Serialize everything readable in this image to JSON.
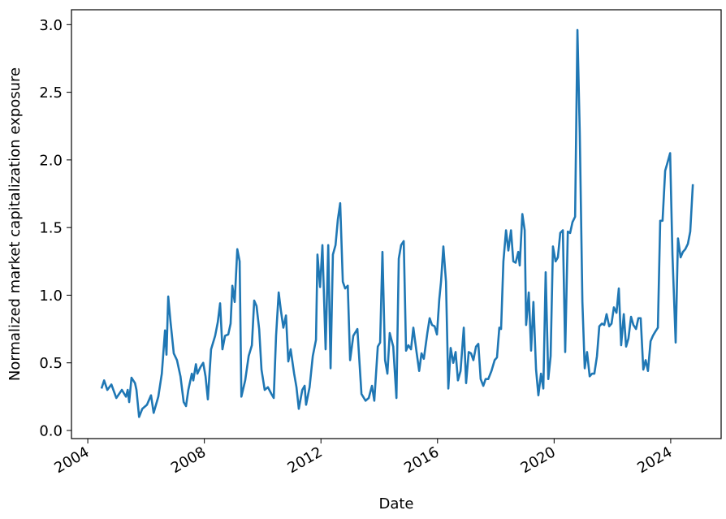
{
  "chart_data": {
    "type": "line",
    "x_label": "Date",
    "y_label": "Normalized market capitalization exposure",
    "color": "#1f77b4",
    "xlim": [
      2003.44,
      2025.73
    ],
    "ylim": [
      -0.06,
      3.11
    ],
    "xticks": [
      2004,
      2008,
      2012,
      2016,
      2020,
      2024
    ],
    "yticks": [
      {
        "value": 0,
        "label": "0.0"
      },
      0.5,
      {
        "value": 1,
        "label": "1.0"
      },
      1.5,
      {
        "value": 2,
        "label": "2.0"
      },
      2.5,
      {
        "value": 3,
        "label": "3.0"
      }
    ],
    "x": [
      2004.47,
      2004.56,
      2004.67,
      2004.81,
      2004.98,
      2005.17,
      2005.31,
      2005.37,
      2005.42,
      2005.5,
      2005.62,
      2005.67,
      2005.76,
      2005.87,
      2006.03,
      2006.17,
      2006.26,
      2006.42,
      2006.54,
      2006.65,
      2006.7,
      2006.76,
      2006.84,
      2006.95,
      2007.06,
      2007.18,
      2007.29,
      2007.37,
      2007.45,
      2007.57,
      2007.62,
      2007.71,
      2007.76,
      2007.87,
      2007.96,
      2008.04,
      2008.12,
      2008.23,
      2008.37,
      2008.46,
      2008.54,
      2008.62,
      2008.71,
      2008.82,
      2008.9,
      2008.96,
      2009.04,
      2009.13,
      2009.21,
      2009.27,
      2009.4,
      2009.52,
      2009.63,
      2009.71,
      2009.79,
      2009.88,
      2009.96,
      2010.07,
      2010.18,
      2010.3,
      2010.38,
      2010.46,
      2010.55,
      2010.63,
      2010.71,
      2010.8,
      2010.88,
      2010.96,
      2011.08,
      2011.16,
      2011.24,
      2011.36,
      2011.44,
      2011.49,
      2011.61,
      2011.72,
      2011.83,
      2011.88,
      2011.97,
      2012.05,
      2012.16,
      2012.25,
      2012.33,
      2012.41,
      2012.5,
      2012.58,
      2012.66,
      2012.75,
      2012.83,
      2012.92,
      2013.0,
      2013.11,
      2013.25,
      2013.39,
      2013.53,
      2013.64,
      2013.75,
      2013.83,
      2013.95,
      2014.03,
      2014.11,
      2014.2,
      2014.28,
      2014.36,
      2014.48,
      2014.59,
      2014.67,
      2014.75,
      2014.84,
      2014.92,
      2015.0,
      2015.09,
      2015.17,
      2015.28,
      2015.37,
      2015.45,
      2015.53,
      2015.65,
      2015.73,
      2015.81,
      2015.9,
      2015.98,
      2016.06,
      2016.12,
      2016.2,
      2016.29,
      2016.37,
      2016.45,
      2016.54,
      2016.62,
      2016.7,
      2016.79,
      2016.9,
      2016.98,
      2017.07,
      2017.15,
      2017.23,
      2017.32,
      2017.4,
      2017.48,
      2017.57,
      2017.65,
      2017.74,
      2017.85,
      2017.96,
      2018.04,
      2018.12,
      2018.18,
      2018.26,
      2018.35,
      2018.43,
      2018.52,
      2018.6,
      2018.68,
      2018.77,
      2018.82,
      2018.91,
      2018.99,
      2019.04,
      2019.13,
      2019.21,
      2019.29,
      2019.38,
      2019.46,
      2019.55,
      2019.63,
      2019.71,
      2019.8,
      2019.88,
      2019.96,
      2020.05,
      2020.13,
      2020.21,
      2020.3,
      2020.38,
      2020.47,
      2020.55,
      2020.63,
      2020.72,
      2020.8,
      2020.88,
      2020.97,
      2021.05,
      2021.13,
      2021.22,
      2021.3,
      2021.38,
      2021.47,
      2021.55,
      2021.64,
      2021.72,
      2021.8,
      2021.89,
      2021.97,
      2022.05,
      2022.14,
      2022.22,
      2022.3,
      2022.39,
      2022.47,
      2022.55,
      2022.64,
      2022.72,
      2022.81,
      2022.89,
      2022.97,
      2023.06,
      2023.14,
      2023.22,
      2023.31,
      2023.39,
      2023.47,
      2023.56,
      2023.64,
      2023.72,
      2023.81,
      2023.89,
      2023.98,
      2024.06,
      2024.17,
      2024.25,
      2024.34,
      2024.42,
      2024.5,
      2024.59,
      2024.67,
      2024.76
    ],
    "values": [
      0.31,
      0.37,
      0.3,
      0.34,
      0.24,
      0.3,
      0.25,
      0.3,
      0.21,
      0.39,
      0.35,
      0.3,
      0.1,
      0.16,
      0.19,
      0.26,
      0.13,
      0.25,
      0.42,
      0.74,
      0.56,
      0.99,
      0.8,
      0.57,
      0.52,
      0.4,
      0.21,
      0.18,
      0.3,
      0.42,
      0.37,
      0.49,
      0.42,
      0.47,
      0.5,
      0.4,
      0.23,
      0.6,
      0.7,
      0.8,
      0.94,
      0.6,
      0.7,
      0.71,
      0.79,
      1.07,
      0.95,
      1.34,
      1.25,
      0.25,
      0.37,
      0.55,
      0.63,
      0.96,
      0.92,
      0.75,
      0.45,
      0.3,
      0.32,
      0.27,
      0.24,
      0.7,
      1.02,
      0.88,
      0.76,
      0.85,
      0.51,
      0.6,
      0.42,
      0.32,
      0.16,
      0.3,
      0.33,
      0.19,
      0.32,
      0.55,
      0.67,
      1.3,
      1.06,
      1.37,
      0.6,
      1.37,
      0.46,
      1.3,
      1.37,
      1.56,
      1.68,
      1.1,
      1.05,
      1.07,
      0.52,
      0.7,
      0.75,
      0.27,
      0.22,
      0.24,
      0.33,
      0.22,
      0.62,
      0.65,
      1.32,
      0.52,
      0.42,
      0.72,
      0.62,
      0.24,
      1.27,
      1.37,
      1.4,
      0.59,
      0.63,
      0.6,
      0.76,
      0.58,
      0.44,
      0.57,
      0.53,
      0.72,
      0.83,
      0.78,
      0.77,
      0.71,
      0.97,
      1.1,
      1.36,
      1.1,
      0.31,
      0.61,
      0.5,
      0.58,
      0.37,
      0.44,
      0.76,
      0.35,
      0.58,
      0.57,
      0.52,
      0.62,
      0.64,
      0.38,
      0.33,
      0.38,
      0.38,
      0.44,
      0.52,
      0.54,
      0.76,
      0.75,
      1.25,
      1.48,
      1.33,
      1.48,
      1.25,
      1.24,
      1.32,
      1.22,
      1.6,
      1.48,
      0.78,
      1.02,
      0.59,
      0.95,
      0.45,
      0.26,
      0.42,
      0.31,
      1.17,
      0.38,
      0.55,
      1.36,
      1.25,
      1.28,
      1.46,
      1.48,
      0.58,
      1.47,
      1.46,
      1.54,
      1.58,
      2.96,
      2.2,
      0.95,
      0.46,
      0.58,
      0.4,
      0.42,
      0.42,
      0.55,
      0.77,
      0.79,
      0.78,
      0.86,
      0.77,
      0.79,
      0.91,
      0.87,
      1.05,
      0.63,
      0.86,
      0.62,
      0.68,
      0.84,
      0.78,
      0.75,
      0.83,
      0.83,
      0.45,
      0.52,
      0.44,
      0.66,
      0.7,
      0.73,
      0.76,
      1.55,
      1.55,
      1.92,
      1.98,
      2.05,
      1.3,
      0.65,
      1.42,
      1.28,
      1.32,
      1.34,
      1.38,
      1.47,
      1.82
    ]
  }
}
